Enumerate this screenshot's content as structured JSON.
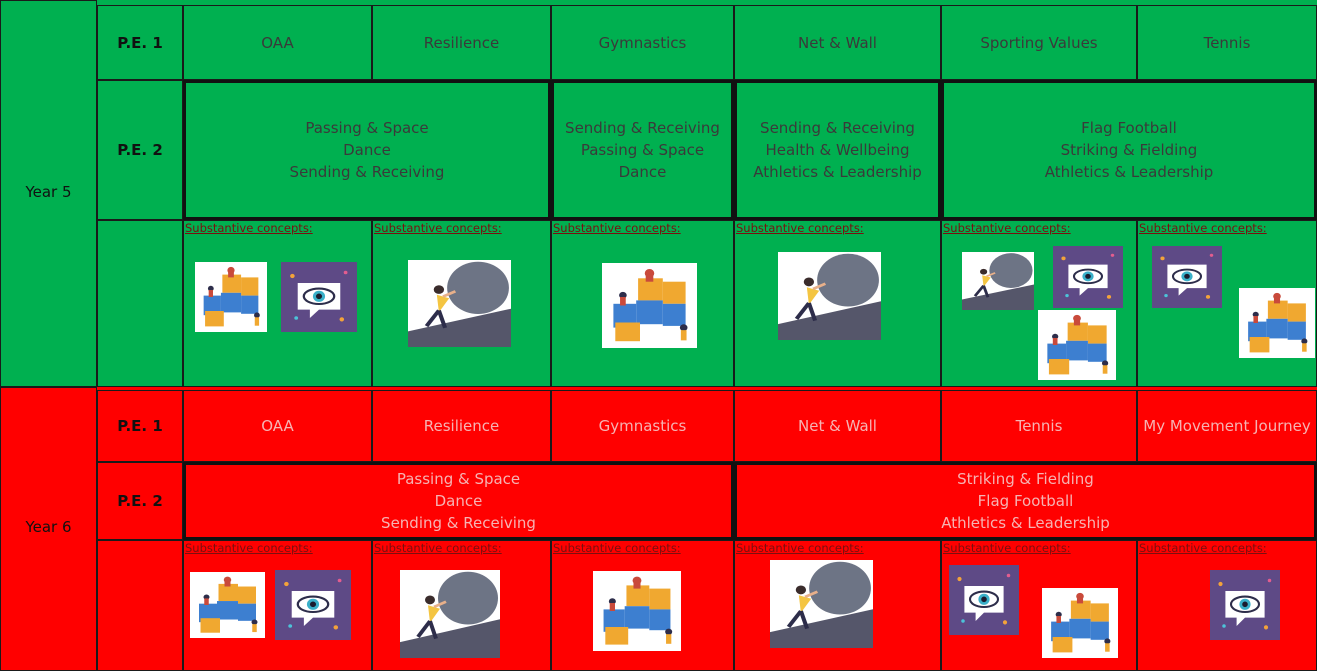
{
  "years": [
    {
      "label": "Year 5",
      "pe1": {
        "label": "P.E. 1",
        "topics": [
          "OAA",
          "Resilience",
          "Gymnastics",
          "Net & Wall",
          "Sporting Values",
          "Tennis"
        ]
      },
      "pe2": {
        "label": "P.E. 2",
        "blocks": [
          [
            "Passing & Space",
            "Dance",
            "Sending & Receiving"
          ],
          [
            "Sending & Receiving",
            "Passing & Space",
            "Dance"
          ],
          [
            "Sending & Receiving",
            "Health & Wellbeing",
            "Athletics & Leadership"
          ],
          [
            "Flag Football",
            "Striking & Fielding",
            "Athletics & Leadership"
          ]
        ]
      },
      "concepts": [
        "Substantive concepts:",
        "Substantive concepts:",
        "Substantive concepts:",
        "Substantive concepts:",
        "Substantive concepts:",
        "Substantive concepts:"
      ]
    },
    {
      "label": "Year 6",
      "pe1": {
        "label": "P.E. 1",
        "topics": [
          "OAA",
          "Resilience",
          "Gymnastics",
          "Net & Wall",
          "Tennis",
          "My Movement Journey"
        ]
      },
      "pe2": {
        "label": "P.E. 2",
        "blocks": [
          [
            "Passing & Space",
            "Dance",
            "Sending & Receiving"
          ],
          [
            "Striking & Fielding",
            "Flag Football",
            "Athletics & Leadership"
          ]
        ]
      },
      "concepts": [
        "Substantive concepts:",
        "Substantive concepts:",
        "Substantive concepts:",
        "Substantive concepts:",
        "Substantive concepts:",
        "Substantive concepts:"
      ]
    }
  ]
}
